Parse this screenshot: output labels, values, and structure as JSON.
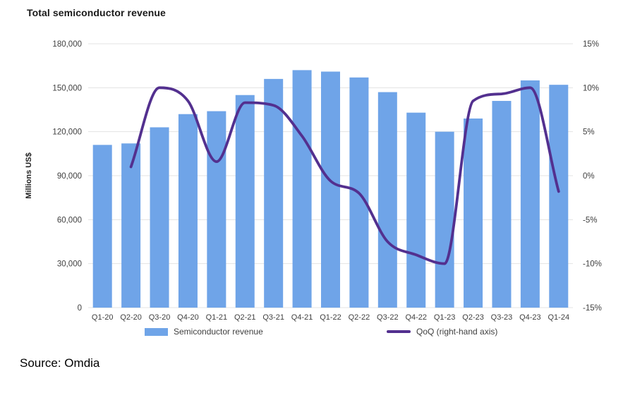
{
  "title": "Total semiconductor revenue",
  "source": "Source: Omdia",
  "legend": {
    "bar_label": "Semiconductor revenue",
    "line_label": "QoQ (right-hand axis)"
  },
  "colors": {
    "bar": "#6FA4E8",
    "line": "#53308F",
    "grid": "#E3E3E3",
    "axis_text": "#3F3F3F"
  },
  "chart_data": {
    "type": "combo-bar-line",
    "title": "Total semiconductor revenue",
    "categories": [
      "Q1-20",
      "Q2-20",
      "Q3-20",
      "Q4-20",
      "Q1-21",
      "Q2-21",
      "Q3-21",
      "Q4-21",
      "Q1-22",
      "Q2-22",
      "Q3-22",
      "Q4-22",
      "Q1-23",
      "Q2-23",
      "Q3-23",
      "Q4-23",
      "Q1-24"
    ],
    "series": [
      {
        "name": "Semiconductor revenue",
        "type": "bar",
        "axis": "left",
        "values": [
          111000,
          112000,
          123000,
          132000,
          134000,
          145000,
          156000,
          162000,
          161000,
          157000,
          147000,
          133000,
          120000,
          129000,
          141000,
          155000,
          152000
        ]
      },
      {
        "name": "QoQ (right-hand axis)",
        "type": "line",
        "axis": "right",
        "values": [
          null,
          1.0,
          10.0,
          8.5,
          1.6,
          8.3,
          8.0,
          4.5,
          -0.6,
          -2.0,
          -7.5,
          -9.0,
          -10.0,
          8.5,
          9.3,
          10.0,
          -1.8
        ]
      }
    ],
    "left_axis": {
      "title": "Millions US$",
      "min": 0,
      "max": 180000,
      "step": 30000,
      "tick_labels": [
        "0",
        "30,000",
        "60,000",
        "90,000",
        "120,000",
        "150,000",
        "180,000"
      ]
    },
    "right_axis": {
      "min": -15,
      "max": 15,
      "step": 5,
      "unit": "%",
      "tick_labels": [
        "-15%",
        "-10%",
        "-5%",
        "0%",
        "5%",
        "10%",
        "15%"
      ]
    },
    "grid": true,
    "legend_position": "bottom"
  }
}
